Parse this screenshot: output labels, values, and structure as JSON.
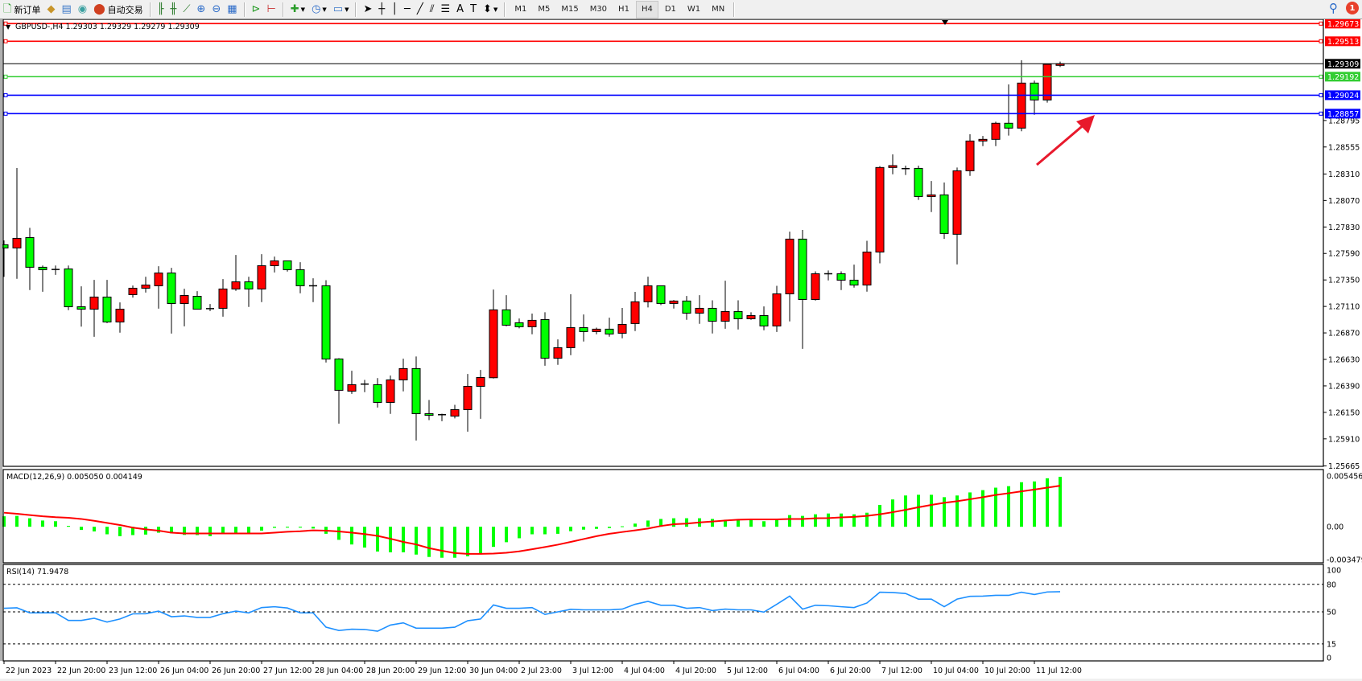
{
  "toolbar": {
    "new_order": "新订单",
    "auto_trading": "自动交易",
    "icons": [
      "new-order-icon",
      "market-watch-icon",
      "navigator-icon",
      "signals-icon",
      "auto-trading-icon",
      "bar-chart-icon",
      "candlestick-icon",
      "line-chart-icon",
      "zoom-in-icon",
      "zoom-out-icon",
      "tile-windows-icon",
      "auto-scroll-icon",
      "chart-shift-icon",
      "indicators-icon",
      "periods-icon",
      "templates-icon",
      "cursor-icon",
      "crosshair-icon",
      "vertical-line-icon",
      "horizontal-line-icon",
      "trendline-icon",
      "equidistant-channel-icon",
      "fibonacci-icon",
      "text-icon",
      "text-label-icon",
      "arrows-icon",
      "search-icon",
      "notification-icon"
    ],
    "timeframes": [
      "M1",
      "M5",
      "M15",
      "M30",
      "H1",
      "H4",
      "D1",
      "W1",
      "MN"
    ],
    "active_timeframe": "H4",
    "notification_count": "1"
  },
  "chart_data": {
    "type": "candlestick",
    "symbol_header": "GBPUSD-,H4  1.29303 1.29329 1.29279 1.29309",
    "colors": {
      "bull": "#ff0000",
      "bear": "#00ff00",
      "outline": "#000000",
      "background": "#ffffff"
    },
    "ylim": [
      1.25661,
      1.29712
    ],
    "price_ticks": [
      "1.28795",
      "1.28555",
      "1.28310",
      "1.28070",
      "1.27830",
      "1.27590",
      "1.27350",
      "1.27110",
      "1.26870",
      "1.26630",
      "1.26390",
      "1.26150",
      "1.25910",
      "1.25665"
    ],
    "time_labels": [
      "22 Jun 2023",
      "22 Jun 20:00",
      "23 Jun 12:00",
      "26 Jun 04:00",
      "26 Jun 20:00",
      "27 Jun 12:00",
      "28 Jun 04:00",
      "28 Jun 20:00",
      "29 Jun 12:00",
      "30 Jun 04:00",
      "2 Jul 23:00",
      "3 Jul 12:00",
      "4 Jul 04:00",
      "4 Jul 20:00",
      "5 Jul 12:00",
      "6 Jul 04:00",
      "6 Jul 20:00",
      "7 Jul 12:00",
      "10 Jul 04:00",
      "10 Jul 20:00",
      "11 Jul 12:00"
    ],
    "time_label_every_n_bars": 4,
    "ohlc": [
      [
        1.27669,
        1.27708,
        1.27378,
        1.2764
      ],
      [
        1.2764,
        1.28364,
        1.2736,
        1.27727
      ],
      [
        1.27734,
        1.27822,
        1.27258,
        1.27465
      ],
      [
        1.27465,
        1.27481,
        1.27243,
        1.27443
      ],
      [
        1.27445,
        1.27481,
        1.27396,
        1.27445
      ],
      [
        1.2745,
        1.27481,
        1.27076,
        1.27107
      ],
      [
        1.27107,
        1.27292,
        1.26927,
        1.27085
      ],
      [
        1.27085,
        1.2735,
        1.26835,
        1.27195
      ],
      [
        1.27195,
        1.2735,
        1.26959,
        1.26969
      ],
      [
        1.26969,
        1.27146,
        1.26872,
        1.27085
      ],
      [
        1.27217,
        1.27299,
        1.2719,
        1.27275
      ],
      [
        1.27275,
        1.27379,
        1.27236,
        1.27304
      ],
      [
        1.27297,
        1.27474,
        1.2709,
        1.27413
      ],
      [
        1.27413,
        1.2746,
        1.26864,
        1.27136
      ],
      [
        1.27136,
        1.2727,
        1.2693,
        1.27209
      ],
      [
        1.27202,
        1.27248,
        1.27085,
        1.27085
      ],
      [
        1.2709,
        1.27132,
        1.27068,
        1.2709
      ],
      [
        1.27093,
        1.27358,
        1.27017,
        1.27268
      ],
      [
        1.27268,
        1.27576,
        1.27251,
        1.27333
      ],
      [
        1.27333,
        1.27379,
        1.27105,
        1.27268
      ],
      [
        1.27268,
        1.27584,
        1.27149,
        1.27479
      ],
      [
        1.27479,
        1.27562,
        1.27418,
        1.27523
      ],
      [
        1.27523,
        1.27523,
        1.27426,
        1.27443
      ],
      [
        1.27443,
        1.27511,
        1.27229,
        1.27297
      ],
      [
        1.27297,
        1.27365,
        1.27149,
        1.27297
      ],
      [
        1.27297,
        1.27348,
        1.26602,
        1.26633
      ],
      [
        1.26634,
        1.26641,
        1.26048,
        1.2635
      ],
      [
        1.26342,
        1.26527,
        1.26318,
        1.26401
      ],
      [
        1.26406,
        1.26444,
        1.26333,
        1.26406
      ],
      [
        1.26401,
        1.26461,
        1.26194,
        1.2624
      ],
      [
        1.2624,
        1.26483,
        1.26136,
        1.26444
      ],
      [
        1.26444,
        1.26636,
        1.2634,
        1.26547
      ],
      [
        1.26547,
        1.26656,
        1.25895,
        1.26138
      ],
      [
        1.26138,
        1.26262,
        1.2608,
        1.26124
      ],
      [
        1.26129,
        1.26138,
        1.2607,
        1.26129
      ],
      [
        1.26116,
        1.26218,
        1.26095,
        1.26175
      ],
      [
        1.26175,
        1.26498,
        1.25975,
        1.26386
      ],
      [
        1.26386,
        1.26534,
        1.26092,
        1.26466
      ],
      [
        1.26464,
        1.27263,
        1.26457,
        1.27079
      ],
      [
        1.27079,
        1.27212,
        1.2693,
        1.2694
      ],
      [
        1.26962,
        1.27001,
        1.26911,
        1.26926
      ],
      [
        1.26926,
        1.27045,
        1.26858,
        1.26984
      ],
      [
        1.26991,
        1.27057,
        1.26573,
        1.26641
      ],
      [
        1.26641,
        1.26811,
        1.26581,
        1.26736
      ],
      [
        1.26736,
        1.2722,
        1.26668,
        1.26918
      ],
      [
        1.26918,
        1.27037,
        1.26792,
        1.26882
      ],
      [
        1.26882,
        1.26918,
        1.26858,
        1.26904
      ],
      [
        1.26904,
        1.27008,
        1.26836,
        1.2686
      ],
      [
        1.26867,
        1.27096,
        1.26821,
        1.26947
      ],
      [
        1.26955,
        1.27242,
        1.26887,
        1.27152
      ],
      [
        1.27152,
        1.2738,
        1.27101,
        1.27297
      ],
      [
        1.27297,
        1.27297,
        1.27122,
        1.27137
      ],
      [
        1.27137,
        1.27168,
        1.27091,
        1.27159
      ],
      [
        1.27159,
        1.27205,
        1.26989,
        1.27049
      ],
      [
        1.27049,
        1.27212,
        1.26952,
        1.27093
      ],
      [
        1.27093,
        1.27166,
        1.26865,
        1.26976
      ],
      [
        1.26976,
        1.27343,
        1.26908,
        1.27064
      ],
      [
        1.27064,
        1.27166,
        1.26901,
        1.26998
      ],
      [
        1.26998,
        1.27057,
        1.26989,
        1.27027
      ],
      [
        1.27027,
        1.2711,
        1.26894,
        1.26933
      ],
      [
        1.26933,
        1.27297,
        1.26879,
        1.27224
      ],
      [
        1.27224,
        1.27788,
        1.26974,
        1.2772
      ],
      [
        1.2772,
        1.27803,
        1.26726,
        1.27173
      ],
      [
        1.27173,
        1.27428,
        1.27163,
        1.27406
      ],
      [
        1.27406,
        1.27436,
        1.27346,
        1.27406
      ],
      [
        1.27406,
        1.27428,
        1.27258,
        1.27348
      ],
      [
        1.27348,
        1.27489,
        1.2728,
        1.27304
      ],
      [
        1.27304,
        1.27705,
        1.27244,
        1.27603
      ],
      [
        1.27603,
        1.28381,
        1.27501,
        1.28369
      ],
      [
        1.28369,
        1.28488,
        1.28308,
        1.28386
      ],
      [
        1.28359,
        1.28386,
        1.28301,
        1.28359
      ],
      [
        1.28361,
        1.28386,
        1.28075,
        1.28106
      ],
      [
        1.28106,
        1.28247,
        1.27965,
        1.28121
      ],
      [
        1.28121,
        1.28233,
        1.27722,
        1.27771
      ],
      [
        1.27764,
        1.28369,
        1.27491,
        1.28339
      ],
      [
        1.28339,
        1.2867,
        1.28293,
        1.28609
      ],
      [
        1.28609,
        1.28655,
        1.28563,
        1.28624
      ],
      [
        1.28624,
        1.28784,
        1.28563,
        1.2877
      ],
      [
        1.2877,
        1.29122,
        1.28658,
        1.28726
      ],
      [
        1.28726,
        1.29341,
        1.28697,
        1.29134
      ],
      [
        1.29134,
        1.29156,
        1.28847,
        1.28981
      ],
      [
        1.28981,
        1.29304,
        1.28957,
        1.29304
      ],
      [
        1.29303,
        1.29329,
        1.29279,
        1.29309
      ]
    ],
    "hlines": [
      {
        "price": "1.29673",
        "color": "#ff0000"
      },
      {
        "price": "1.29513",
        "color": "#ff0000"
      },
      {
        "price": "1.29309",
        "color": "#000000"
      },
      {
        "price": "1.29192",
        "color": "#32cd32"
      },
      {
        "price": "1.29024",
        "color": "#0000ff"
      },
      {
        "price": "1.28857",
        "color": "#0000ff"
      }
    ],
    "arrow_color": "#e8192c",
    "macd": {
      "label": "MACD(12,26,9) 0.005050 0.004149",
      "axis_labels": [
        "0.005456",
        "0.00",
        "-0.003479"
      ],
      "ylim": [
        -0.003479,
        0.005456
      ],
      "hist_color": "#00ff00",
      "signal_color": "#ff0000",
      "histogram": [
        0.00106,
        0.0011,
        0.00086,
        0.00063,
        0.00056,
        9e-05,
        -0.00032,
        -0.00047,
        -0.00076,
        -0.00095,
        -0.00084,
        -0.00079,
        -0.0006,
        -0.00066,
        -0.00082,
        -0.00084,
        -0.00095,
        -0.00066,
        -0.00066,
        -0.0006,
        -0.00039,
        -0.00011,
        -9e-05,
        -9e-05,
        -0.00018,
        -0.00071,
        -0.00132,
        -0.00179,
        -0.0021,
        -0.0025,
        -0.00258,
        -0.00258,
        -0.00281,
        -0.00305,
        -0.00313,
        -0.00313,
        -0.00298,
        -0.00268,
        -0.00203,
        -0.00156,
        -0.00116,
        -0.00076,
        -0.00076,
        -0.00071,
        -0.00045,
        -0.00029,
        -0.00021,
        -0.00013,
        5e-05,
        0.00032,
        0.00063,
        0.00079,
        0.00086,
        0.00086,
        0.00086,
        0.00079,
        0.00071,
        0.00071,
        0.00071,
        0.00056,
        0.00071,
        0.00118,
        0.0011,
        0.00126,
        0.00134,
        0.00134,
        0.00126,
        0.00142,
        0.00221,
        0.00276,
        0.00316,
        0.00323,
        0.00323,
        0.00299,
        0.00316,
        0.00347,
        0.0037,
        0.00395,
        0.0041,
        0.0045,
        0.00458,
        0.0049,
        0.00505
      ],
      "signal": [
        0.00142,
        0.00131,
        0.00118,
        0.00106,
        0.00097,
        0.00091,
        0.00079,
        0.0006,
        0.00039,
        0.00018,
        -9e-05,
        -0.00026,
        -0.00039,
        -0.0006,
        -0.00068,
        -0.00068,
        -0.00068,
        -0.00068,
        -0.00068,
        -0.00068,
        -0.00068,
        -0.0006,
        -0.0005,
        -0.00045,
        -0.00036,
        -0.00039,
        -0.00047,
        -0.0006,
        -0.00074,
        -0.00092,
        -0.00121,
        -0.00153,
        -0.00179,
        -0.00216,
        -0.00242,
        -0.00266,
        -0.00274,
        -0.00274,
        -0.00271,
        -0.00263,
        -0.00248,
        -0.00227,
        -0.00205,
        -0.00181,
        -0.00153,
        -0.00124,
        -0.00095,
        -0.00071,
        -0.00053,
        -0.00036,
        -0.00018,
        8e-05,
        0.00026,
        0.00032,
        0.00044,
        0.00053,
        0.00063,
        0.00071,
        0.00074,
        0.00074,
        0.00074,
        0.00079,
        0.00079,
        0.00086,
        0.00088,
        0.00095,
        0.001,
        0.0011,
        0.00126,
        0.00147,
        0.00171,
        0.00197,
        0.00221,
        0.00242,
        0.00258,
        0.00278,
        0.00299,
        0.00321,
        0.00339,
        0.00358,
        0.00376,
        0.00395,
        0.00415
      ]
    },
    "rsi": {
      "label": "RSI(14) 71.9478",
      "axis_labels": [
        "100",
        "80",
        "50",
        "15",
        "0"
      ],
      "levels": [
        80,
        50,
        15
      ],
      "ylim": [
        0,
        100
      ],
      "color": "#1e90ff",
      "values": [
        53.9,
        54.4,
        48.9,
        49,
        49,
        40.6,
        40.6,
        43,
        38.9,
        42.2,
        47.8,
        48,
        50.8,
        44.7,
        45.6,
        43.9,
        43.9,
        48,
        50.8,
        48.9,
        54.7,
        55.6,
        54.2,
        48.9,
        48.9,
        33.3,
        29.7,
        31.1,
        30.8,
        28.9,
        35.6,
        38,
        32.2,
        32.2,
        32.2,
        33.3,
        40.3,
        42.2,
        57.5,
        53.9,
        53.9,
        54.7,
        47.2,
        50,
        52.8,
        52.2,
        52.2,
        52.2,
        53,
        58.3,
        61.4,
        57.2,
        57.2,
        53.9,
        54.7,
        51.4,
        53,
        52.2,
        52.2,
        49.7,
        58.3,
        67.2,
        53,
        57.2,
        56.7,
        55.6,
        54.7,
        59.7,
        71.4,
        71.1,
        70,
        63.9,
        63.9,
        55.6,
        63.9,
        66.9,
        67.2,
        68,
        68,
        71.4,
        68.9,
        71.7,
        71.9478
      ]
    }
  }
}
